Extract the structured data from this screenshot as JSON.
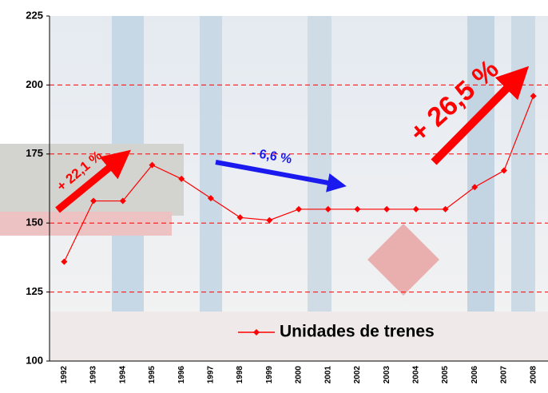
{
  "chart_data": {
    "type": "line",
    "categories": [
      "1992",
      "1993",
      "1994",
      "1995",
      "1996",
      "1997",
      "1998",
      "1999",
      "2000",
      "2001",
      "2002",
      "2003",
      "2004",
      "2005",
      "2006",
      "2007",
      "2008"
    ],
    "series": [
      {
        "name": "Unidades de trenes",
        "color": "#ff0000",
        "values": [
          136,
          158,
          158,
          171,
          166,
          159,
          152,
          151,
          155,
          155,
          155,
          155,
          155,
          155,
          163,
          169,
          196
        ]
      }
    ],
    "annotations": [
      "+ 22,1 %",
      "- 6,6 %",
      "+ 26,5 %"
    ],
    "ylim": [
      100,
      225
    ],
    "yticks": [
      100,
      125,
      150,
      175,
      200,
      225
    ],
    "grid": true,
    "legend": "lower right"
  }
}
